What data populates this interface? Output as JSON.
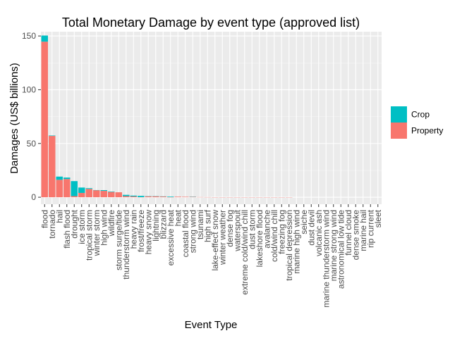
{
  "chart_data": {
    "type": "bar",
    "stacked": true,
    "title": "Total Monetary Damage by event type (approved list)",
    "xlabel": "Event Type",
    "ylabel": "Damages (US$ billions)",
    "ylim": [
      -6.5,
      154
    ],
    "yticks": [
      0,
      50,
      100,
      150
    ],
    "grid": true,
    "legend_position": "right",
    "colors": {
      "Crop": "#00bfc4",
      "Property": "#f8766d",
      "panel": "#ebebeb",
      "grid_major": "#ffffff",
      "grid_minor": "#f5f5f5"
    },
    "categories": [
      "flood",
      "tornado",
      "hail",
      "flash flood",
      "drought",
      "ice storm",
      "tropical storm",
      "winter storm",
      "high wind",
      "wildfire",
      "storm surge/tide",
      "thunderstorm wind",
      "heavy rain",
      "frost/freeze",
      "heavy snow",
      "lightning",
      "blizzard",
      "excessive heat",
      "heat",
      "coastal flood",
      "strong wind",
      "tsunami",
      "high surf",
      "lake-effect snow",
      "winter weather",
      "dense fog",
      "waterspout",
      "extreme cold/wind chill",
      "dust storm",
      "lakeshore flood",
      "avalanche",
      "cold/wind chill",
      "freezing fog",
      "tropical depression",
      "marine high wind",
      "seiche",
      "dust devil",
      "volcanic ash",
      "marine thunderstorm wind",
      "marine strong wind",
      "astronomical low tide",
      "funnel cloud",
      "dense smoke",
      "marine hail",
      "rip current",
      "sleet"
    ],
    "series": [
      {
        "name": "Property",
        "values": [
          144.7,
          57.0,
          16.2,
          16.9,
          1.0,
          4.0,
          7.7,
          6.6,
          5.9,
          4.9,
          4.6,
          1.0,
          0.7,
          0.1,
          0.9,
          0.9,
          0.7,
          0.05,
          0.5,
          0.4,
          0.4,
          0.14,
          0.1,
          0.05,
          0.02,
          0.02,
          0.01,
          0.01,
          0.01,
          0.01,
          0.01,
          0.01,
          0.01,
          0.01,
          0.0,
          0.0,
          0.0,
          0.0,
          0.0,
          0.0,
          0.0,
          0.0,
          0.0,
          0.0,
          0.0,
          0.0
        ]
      },
      {
        "name": "Crop",
        "values": [
          5.7,
          0.4,
          3.0,
          1.4,
          14.0,
          5.0,
          0.7,
          0.03,
          0.7,
          0.4,
          0.0,
          1.2,
          0.8,
          1.2,
          0.1,
          0.01,
          0.1,
          0.5,
          0.0,
          0.0,
          0.1,
          0.0,
          0.0,
          0.0,
          0.0,
          0.0,
          0.0,
          0.0,
          0.0,
          0.0,
          0.0,
          0.0,
          0.0,
          0.0,
          0.0,
          0.0,
          0.0,
          0.0,
          0.0,
          0.0,
          0.0,
          0.0,
          0.0,
          0.0,
          0.0,
          0.0
        ]
      }
    ],
    "legend": [
      "Crop",
      "Property"
    ]
  }
}
